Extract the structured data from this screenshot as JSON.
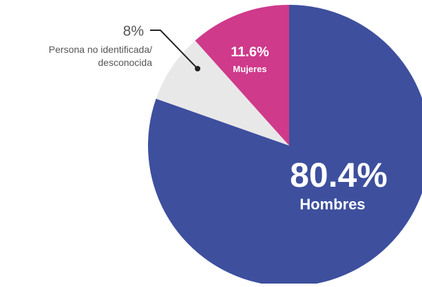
{
  "chart_data": {
    "type": "pie",
    "slices": [
      {
        "label": "Hombres",
        "value": 80.4,
        "value_label": "80.4%",
        "color": "#3e4f9e"
      },
      {
        "label": "Persona no identificada/ desconocida",
        "value": 8,
        "value_label": "8%",
        "color": "#e8e8e8"
      },
      {
        "label": "Mujeres",
        "value": 11.6,
        "value_label": "11.6%",
        "color": "#cf3a8b"
      }
    ],
    "start_angle": "12 o'clock",
    "direction": "clockwise",
    "labels": {
      "hombres_pct": "80.4%",
      "hombres_name": "Hombres",
      "mujeres_pct": "11.6%",
      "mujeres_name": "Mujeres",
      "unknown_pct": "8%",
      "unknown_name_line1": "Persona no identificada/",
      "unknown_name_line2": "desconocida"
    },
    "colors": {
      "hombres": "#3e4f9e",
      "unknown": "#e8e8e8",
      "mujeres": "#cf3a8b",
      "text_dark": "#555555",
      "leader": "#222222"
    }
  }
}
